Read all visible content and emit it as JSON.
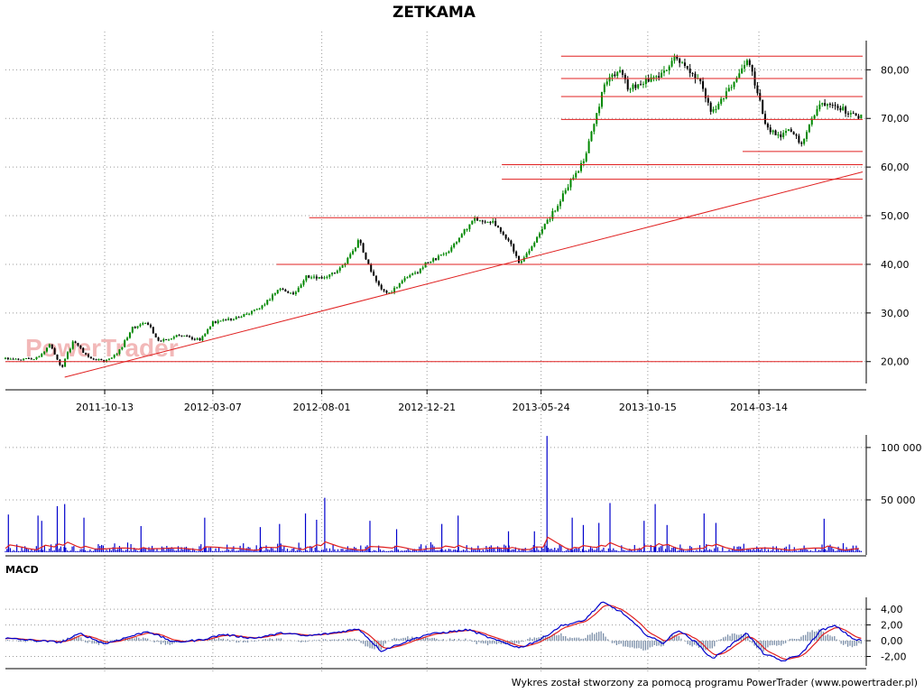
{
  "chart_data": {
    "title": "ZETKAMA",
    "watermark": "PowerTrader",
    "footer": "Wykres został stworzony za pomocą programu PowerTrader (www.powertrader.pl)",
    "colors": {
      "up": "#008800",
      "down": "#000000",
      "support_lines": "#e02020",
      "trendline": "#e02020",
      "volume_bars": "#0000cc",
      "volume_avg": "#e02020",
      "macd_line": "#0000cc",
      "signal_line": "#e02020",
      "histogram": "#7a8ea8",
      "grid": "#999999"
    },
    "price_panel": {
      "type": "candlestick",
      "x_labels": [
        "2011-10-13",
        "2012-03-07",
        "2012-08-01",
        "2012-12-21",
        "2013-05-24",
        "2013-10-15",
        "2014-03-14"
      ],
      "y_ticks": [
        "20,00",
        "30,00",
        "40,00",
        "50,00",
        "60,00",
        "70,00",
        "80,00"
      ],
      "ylim": [
        15.5,
        86
      ],
      "price_path": [
        [
          "2011-06-01",
          20.5
        ],
        [
          "2011-07-10",
          20.4
        ],
        [
          "2011-08-01",
          23.5
        ],
        [
          "2011-08-15",
          18.5
        ],
        [
          "2011-09-01",
          24.5
        ],
        [
          "2011-09-20",
          21.0
        ],
        [
          "2011-10-13",
          20.0
        ],
        [
          "2011-11-01",
          22.0
        ],
        [
          "2011-11-20",
          27.0
        ],
        [
          "2011-12-10",
          28.0
        ],
        [
          "2011-12-25",
          24.0
        ],
        [
          "2012-01-20",
          25.5
        ],
        [
          "2012-02-20",
          24.5
        ],
        [
          "2012-03-07",
          28.0
        ],
        [
          "2012-04-10",
          29.0
        ],
        [
          "2012-05-10",
          31.0
        ],
        [
          "2012-06-05",
          35.0
        ],
        [
          "2012-06-25",
          33.5
        ],
        [
          "2012-07-10",
          37.5
        ],
        [
          "2012-08-01",
          37.0
        ],
        [
          "2012-08-20",
          38.5
        ],
        [
          "2012-09-05",
          41.0
        ],
        [
          "2012-09-20",
          45.0
        ],
        [
          "2012-10-05",
          39.0
        ],
        [
          "2012-10-20",
          35.0
        ],
        [
          "2012-11-01",
          34.0
        ],
        [
          "2012-11-25",
          37.5
        ],
        [
          "2012-12-10",
          38.5
        ],
        [
          "2012-12-21",
          40.5
        ],
        [
          "2013-01-15",
          42.0
        ],
        [
          "2013-02-10",
          47.0
        ],
        [
          "2013-02-25",
          49.5
        ],
        [
          "2013-03-20",
          48.5
        ],
        [
          "2013-04-10",
          45.0
        ],
        [
          "2013-04-25",
          40.0
        ],
        [
          "2013-05-10",
          43.0
        ],
        [
          "2013-05-24",
          47.0
        ],
        [
          "2013-06-15",
          52.0
        ],
        [
          "2013-07-05",
          58.0
        ],
        [
          "2013-07-20",
          61.0
        ],
        [
          "2013-08-05",
          70.0
        ],
        [
          "2013-08-20",
          78.0
        ],
        [
          "2013-09-05",
          80.0
        ],
        [
          "2013-09-20",
          76.0
        ],
        [
          "2013-10-15",
          78.0
        ],
        [
          "2013-11-05",
          79.0
        ],
        [
          "2013-11-20",
          83.0
        ],
        [
          "2013-12-10",
          79.5
        ],
        [
          "2013-12-25",
          77.0
        ],
        [
          "2014-01-10",
          71.0
        ],
        [
          "2014-01-25",
          74.0
        ],
        [
          "2014-02-10",
          78.0
        ],
        [
          "2014-02-28",
          82.0
        ],
        [
          "2014-03-14",
          74.0
        ],
        [
          "2014-03-25",
          68.0
        ],
        [
          "2014-04-10",
          66.0
        ],
        [
          "2014-04-25",
          67.5
        ],
        [
          "2014-05-10",
          65.0
        ],
        [
          "2014-05-25",
          70.0
        ],
        [
          "2014-06-05",
          73.0
        ],
        [
          "2014-06-20",
          73.5
        ],
        [
          "2014-07-05",
          72.0
        ],
        [
          "2014-07-20",
          70.5
        ]
      ],
      "support_lines": [
        {
          "level": 82.8,
          "from": "2013-06-20",
          "to": "2014-08-01"
        },
        {
          "level": 78.2,
          "from": "2013-06-20",
          "to": "2014-08-01"
        },
        {
          "level": 74.5,
          "from": "2013-06-20",
          "to": "2014-08-01"
        },
        {
          "level": 69.8,
          "from": "2013-06-20",
          "to": "2014-08-01"
        },
        {
          "level": 63.2,
          "from": "2014-02-20",
          "to": "2014-08-01"
        },
        {
          "level": 60.5,
          "from": "2013-04-01",
          "to": "2014-08-01"
        },
        {
          "level": 57.5,
          "from": "2013-04-01",
          "to": "2014-08-01"
        },
        {
          "level": 49.6,
          "from": "2012-07-15",
          "to": "2014-08-01"
        },
        {
          "level": 40.0,
          "from": "2012-06-01",
          "to": "2014-08-01"
        },
        {
          "level": 20.0,
          "from": "2011-06-01",
          "to": "2014-08-01"
        }
      ],
      "trendline": {
        "from": [
          "2011-08-20",
          16.8
        ],
        "to": [
          "2014-08-01",
          59.0
        ]
      }
    },
    "volume_panel": {
      "type": "bar",
      "y_ticks": [
        "50 000",
        "100 000"
      ],
      "ylim": [
        0,
        112000
      ],
      "volume_spikes": [
        [
          "2011-06-05",
          36000
        ],
        [
          "2011-07-15",
          35000
        ],
        [
          "2011-07-20",
          30000
        ],
        [
          "2011-08-10",
          44000
        ],
        [
          "2011-08-20",
          46000
        ],
        [
          "2011-09-15",
          33000
        ],
        [
          "2011-12-01",
          25000
        ],
        [
          "2012-02-25",
          33000
        ],
        [
          "2012-05-10",
          24000
        ],
        [
          "2012-06-05",
          27000
        ],
        [
          "2012-07-10",
          37000
        ],
        [
          "2012-07-25",
          31000
        ],
        [
          "2012-08-05",
          52000
        ],
        [
          "2012-10-05",
          30000
        ],
        [
          "2012-11-10",
          22000
        ],
        [
          "2013-01-10",
          27000
        ],
        [
          "2013-02-01",
          35000
        ],
        [
          "2013-04-10",
          20000
        ],
        [
          "2013-05-15",
          20000
        ],
        [
          "2013-06-01",
          111000
        ],
        [
          "2013-07-05",
          33000
        ],
        [
          "2013-07-20",
          26000
        ],
        [
          "2013-08-10",
          28000
        ],
        [
          "2013-08-25",
          47000
        ],
        [
          "2013-10-10",
          30000
        ],
        [
          "2013-10-25",
          46000
        ],
        [
          "2013-11-10",
          26000
        ],
        [
          "2013-12-30",
          37000
        ],
        [
          "2014-01-15",
          28000
        ],
        [
          "2014-06-10",
          32000
        ]
      ]
    },
    "macd_panel": {
      "label": "MACD",
      "y_ticks": [
        "-2,00",
        "0,00",
        "2,00",
        "4,00"
      ],
      "ylim": [
        -3.2,
        5.5
      ],
      "macd_path": [
        [
          "2011-06-01",
          0.3
        ],
        [
          "2011-07-15",
          0.0
        ],
        [
          "2011-08-15",
          -0.2
        ],
        [
          "2011-09-10",
          0.9
        ],
        [
          "2011-10-13",
          -0.4
        ],
        [
          "2011-11-15",
          0.5
        ],
        [
          "2011-12-10",
          1.2
        ],
        [
          "2012-01-15",
          -0.2
        ],
        [
          "2012-02-20",
          0.1
        ],
        [
          "2012-03-20",
          0.8
        ],
        [
          "2012-05-01",
          0.3
        ],
        [
          "2012-06-10",
          1.0
        ],
        [
          "2012-07-10",
          0.6
        ],
        [
          "2012-08-10",
          0.9
        ],
        [
          "2012-09-20",
          1.5
        ],
        [
          "2012-10-20",
          -1.3
        ],
        [
          "2012-11-20",
          -0.2
        ],
        [
          "2012-12-21",
          0.8
        ],
        [
          "2013-02-15",
          1.4
        ],
        [
          "2013-03-20",
          0.2
        ],
        [
          "2013-04-25",
          -0.9
        ],
        [
          "2013-05-24",
          0.2
        ],
        [
          "2013-06-20",
          1.9
        ],
        [
          "2013-07-20",
          2.5
        ],
        [
          "2013-08-15",
          4.9
        ],
        [
          "2013-09-10",
          3.6
        ],
        [
          "2013-10-15",
          0.6
        ],
        [
          "2013-11-05",
          -0.3
        ],
        [
          "2013-11-25",
          1.4
        ],
        [
          "2013-12-20",
          -0.3
        ],
        [
          "2014-01-10",
          -2.3
        ],
        [
          "2014-02-01",
          -0.8
        ],
        [
          "2014-02-25",
          1.0
        ],
        [
          "2014-03-20",
          -1.6
        ],
        [
          "2014-04-15",
          -2.6
        ],
        [
          "2014-05-10",
          -1.7
        ],
        [
          "2014-06-05",
          1.3
        ],
        [
          "2014-06-25",
          1.9
        ],
        [
          "2014-07-20",
          0.2
        ],
        [
          "2014-08-01",
          0.0
        ]
      ]
    }
  }
}
